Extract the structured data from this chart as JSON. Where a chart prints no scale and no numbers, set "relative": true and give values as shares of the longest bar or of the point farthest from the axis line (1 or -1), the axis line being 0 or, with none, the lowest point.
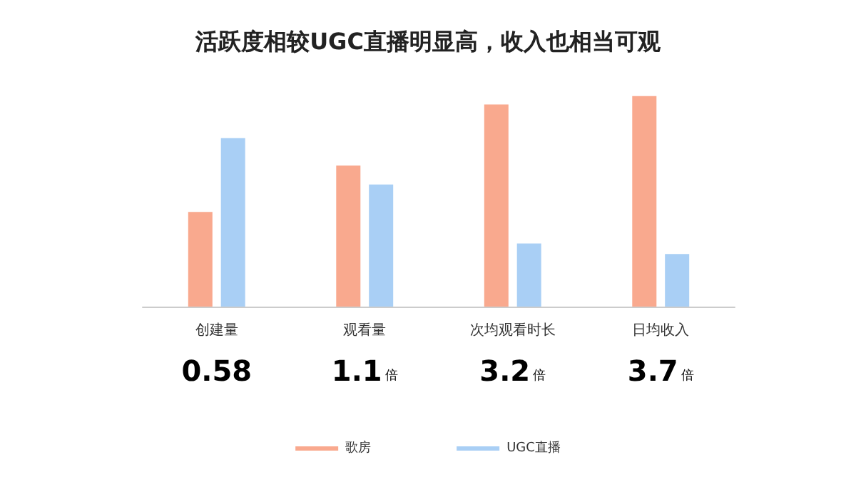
{
  "chart_data": {
    "type": "bar",
    "title": "活跃度相较UGC直播明显高，收入也相当可观",
    "relative": true,
    "categories": [
      "创建量",
      "观看量",
      "次均观看时长",
      "日均收入"
    ],
    "series": [
      {
        "name": "歌房",
        "color": "#f9a98e",
        "values": [
          0.45,
          0.67,
          0.96,
          1.0
        ]
      },
      {
        "name": "UGC直播",
        "color": "#a9cff5",
        "values": [
          0.8,
          0.58,
          0.3,
          0.25
        ]
      }
    ],
    "annotations": [
      "0.58",
      "1.1倍",
      "3.2倍",
      "3.7倍"
    ],
    "legend": "bottom",
    "grid": false
  }
}
